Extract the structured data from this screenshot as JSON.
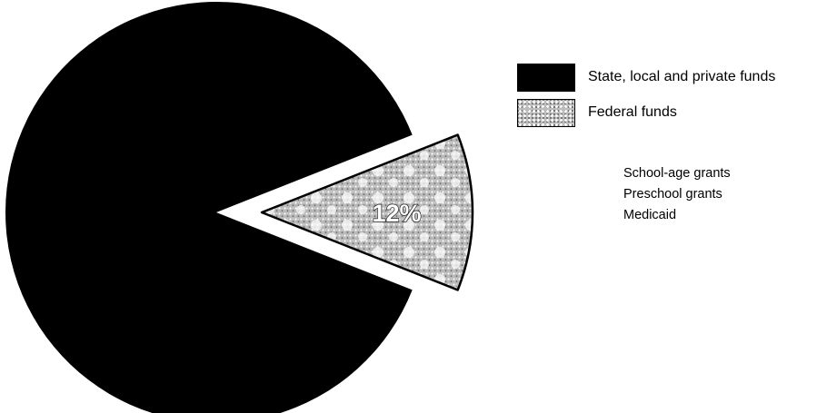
{
  "chart_data": {
    "type": "pie",
    "slices": [
      {
        "label": "State, local and private funds",
        "value": 88,
        "color": "#000000",
        "exploded": false
      },
      {
        "label": "Federal funds",
        "value": 12,
        "data_label": "12%",
        "color": "#bdbdbd",
        "pattern": "dotted",
        "exploded": true
      }
    ],
    "legend": {
      "placement": "right",
      "items": [
        {
          "label": "State, local and private funds",
          "swatch": "solid-black"
        },
        {
          "label": "Federal funds",
          "swatch": "dotted-gray"
        }
      ],
      "federal_components": [
        "School-age grants",
        "Preschool grants",
        "Medicaid"
      ]
    }
  }
}
